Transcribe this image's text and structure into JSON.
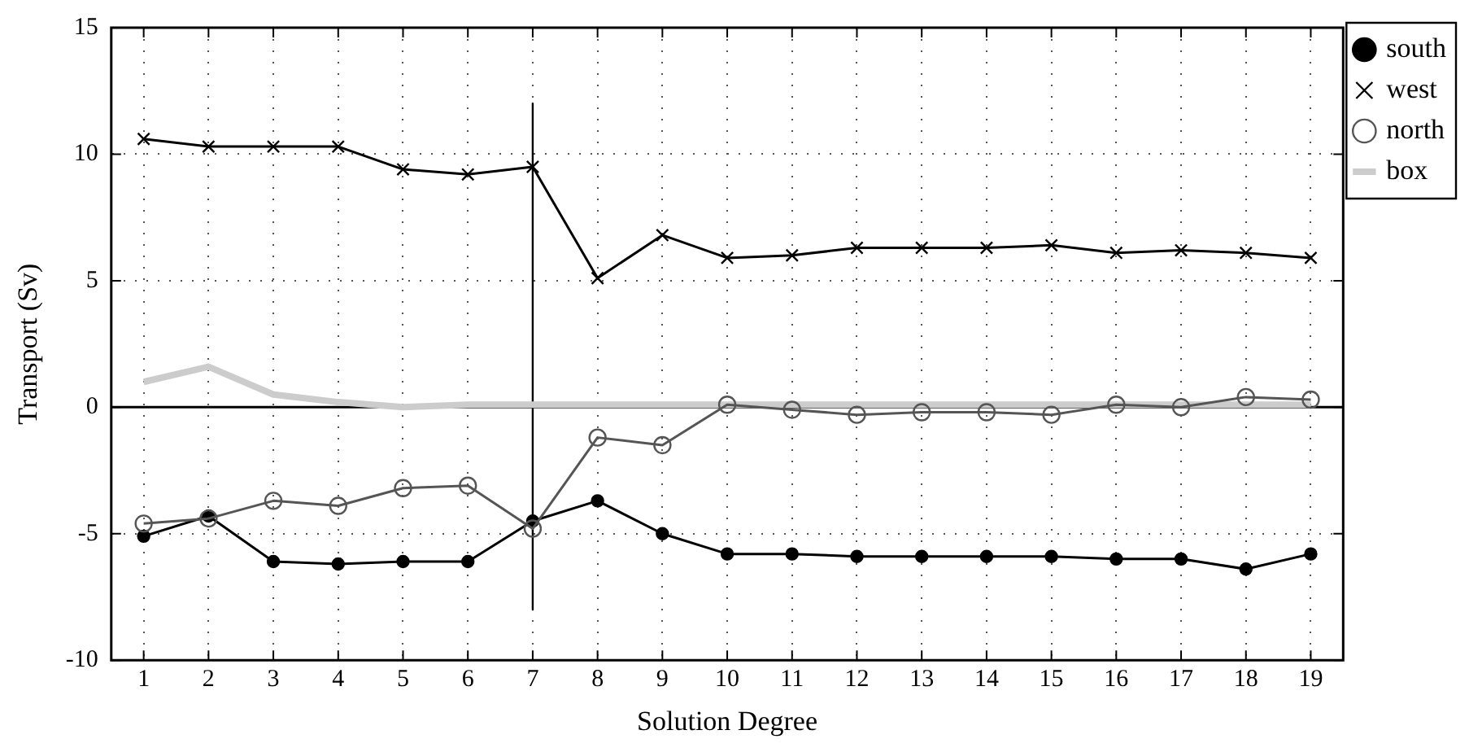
{
  "chart_data": {
    "type": "line",
    "xlabel": "Solution Degree",
    "ylabel": "Transport (Sv)",
    "x": [
      1,
      2,
      3,
      4,
      5,
      6,
      7,
      8,
      9,
      10,
      11,
      12,
      13,
      14,
      15,
      16,
      17,
      18,
      19
    ],
    "xlim": [
      0.5,
      19.5
    ],
    "xticks": [
      1,
      2,
      3,
      4,
      5,
      6,
      7,
      8,
      9,
      10,
      11,
      12,
      13,
      14,
      15,
      16,
      17,
      18,
      19
    ],
    "ylim": [
      -10,
      15
    ],
    "yticks": [
      -10,
      -5,
      0,
      5,
      10,
      15
    ],
    "grid": true,
    "legend": "top right",
    "line_style": "solid",
    "ref_lines": [
      {
        "axis": "y",
        "value": 0,
        "color": "#000000"
      }
    ],
    "series": [
      {
        "name": "south",
        "color": "#000000",
        "marker": "circle",
        "values": [
          -5.1,
          -4.3,
          -6.1,
          -6.2,
          -6.1,
          -6.1,
          -4.5,
          -3.7,
          -5.0,
          -5.8,
          -5.8,
          -5.9,
          -5.9,
          -5.9,
          -5.9,
          -6.0,
          -6.0,
          -6.4,
          -5.8
        ]
      },
      {
        "name": "west",
        "color": "#000000",
        "marker": "cross",
        "values": [
          10.6,
          10.3,
          10.3,
          10.3,
          9.4,
          9.2,
          9.5,
          5.1,
          6.8,
          5.9,
          6.0,
          6.3,
          6.3,
          6.3,
          6.4,
          6.1,
          6.2,
          6.1,
          5.9
        ]
      },
      {
        "name": "north",
        "color": "#555555",
        "marker": "circle",
        "values": [
          -4.6,
          -4.4,
          -3.7,
          -3.9,
          -3.2,
          -3.1,
          -4.8,
          -1.2,
          -1.5,
          0.1,
          -0.1,
          -0.3,
          -0.2,
          -0.2,
          -0.3,
          0.1,
          0.0,
          0.4,
          0.3
        ]
      },
      {
        "name": "box",
        "color": "#cccccc",
        "marker": "none",
        "values": [
          1.0,
          1.6,
          0.5,
          0.2,
          0.0,
          0.1,
          0.1,
          0.1,
          0.1,
          0.1,
          0.1,
          0.1,
          0.1,
          0.1,
          0.1,
          0.1,
          0.1,
          0.1,
          0.1
        ]
      },
      {
        "type": "line",
        "color": "#000000",
        "marker": "none",
        "x": [
          7,
          7
        ],
        "values": [
          12,
          -8
        ]
      }
    ]
  }
}
